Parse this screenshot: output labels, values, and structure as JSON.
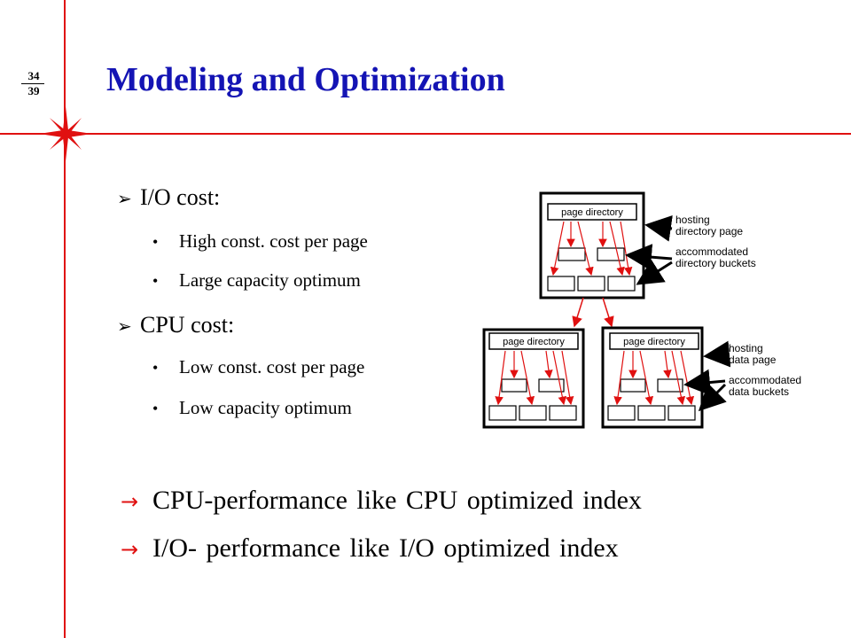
{
  "slide": {
    "page_current": "34",
    "page_total": "39",
    "title": "Modeling and Optimization",
    "sections": [
      {
        "label": "I/O cost:",
        "items": [
          "High const. cost per page",
          "Large capacity optimum"
        ]
      },
      {
        "label": "CPU cost:",
        "items": [
          "Low const. cost per page",
          "Low capacity optimum"
        ]
      }
    ],
    "conclusions": [
      "CPU-performance like CPU optimized index",
      "I/O- performance like I/O optimized index"
    ],
    "bullet_marker": "➢",
    "conclusion_marker": "→"
  },
  "diagram": {
    "box_label": "page directory",
    "annotations": {
      "hosting_dir": [
        "hosting",
        "directory page"
      ],
      "accom_dir": [
        "accommodated",
        "directory buckets"
      ],
      "hosting_data": [
        "hosting",
        "data page"
      ],
      "accom_data": [
        "accommodated",
        "data buckets"
      ]
    }
  },
  "colors": {
    "title": "#1414b4",
    "accent_lines": "#e01010",
    "diagram_arrows": "#e01010"
  }
}
